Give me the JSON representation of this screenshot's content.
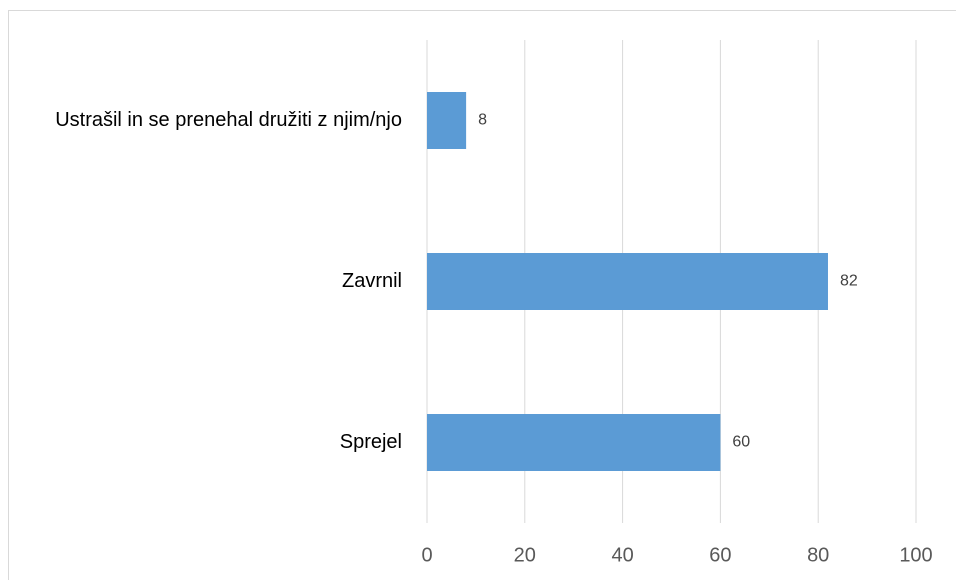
{
  "chart_data": {
    "type": "hbar",
    "categories": [
      "Ustrašil in se prenehal družiti z njim/njo",
      "Zavrnil",
      "Sprejel"
    ],
    "values": [
      8,
      82,
      60
    ],
    "color": "#5b9bd5",
    "xlim": [
      0,
      100
    ],
    "xticks": [
      0,
      20,
      40,
      60,
      80,
      100
    ],
    "grid": true
  }
}
